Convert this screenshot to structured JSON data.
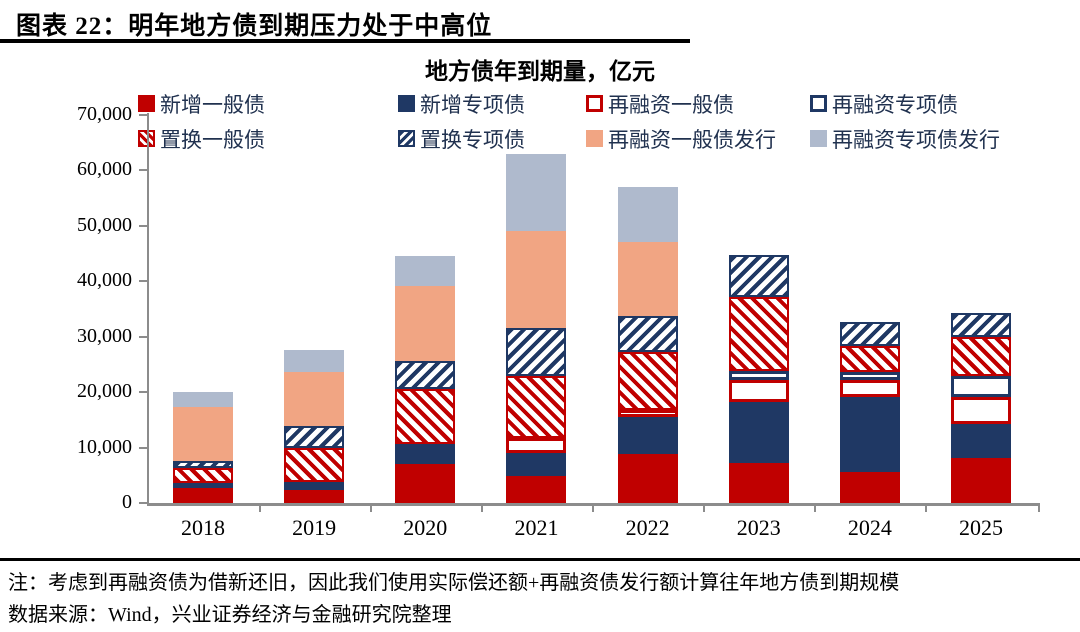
{
  "header": {
    "title": "图表 22：明年地方债到期压力处于中高位"
  },
  "chart": {
    "title": "地方债年到期量，亿元"
  },
  "chart_data": {
    "type": "bar",
    "stacked": true,
    "title": "地方债年到期量，亿元",
    "unit": "亿元",
    "ylim": [
      0,
      70000
    ],
    "ytick_step": 10000,
    "yticks": [
      "70,000",
      "60,000",
      "50,000",
      "40,000",
      "30,000",
      "20,000",
      "10,000",
      "0"
    ],
    "grid": false,
    "legend_position": "top",
    "categories": [
      "2018",
      "2019",
      "2020",
      "2021",
      "2022",
      "2023",
      "2024",
      "2025"
    ],
    "series": [
      {
        "name": "新增一般债",
        "style": "solid-red",
        "color": "#C00000",
        "values": [
          2700,
          2400,
          7000,
          4900,
          8800,
          7300,
          5500,
          8100
        ]
      },
      {
        "name": "新增专项债",
        "style": "solid-navy",
        "color": "#1F3864",
        "values": [
          900,
          1400,
          3700,
          4200,
          6700,
          10900,
          13600,
          6200
        ]
      },
      {
        "name": "再融资一般债",
        "style": "hollow-red",
        "color": "#C00000",
        "values": [
          0,
          0,
          0,
          2700,
          1200,
          3900,
          3000,
          4900
        ]
      },
      {
        "name": "再融资专项债",
        "style": "hollow-navy",
        "color": "#1F3864",
        "values": [
          0,
          0,
          0,
          0,
          0,
          1800,
          1500,
          3700
        ]
      },
      {
        "name": "置换一般债",
        "style": "hatch-red",
        "color": "#C00000",
        "values": [
          2800,
          6200,
          9900,
          11100,
          10600,
          13300,
          4800,
          7000
        ]
      },
      {
        "name": "置换专项债",
        "style": "hatch-navy",
        "color": "#1F3864",
        "values": [
          1200,
          3800,
          5000,
          8600,
          6400,
          7600,
          4200,
          4400
        ]
      },
      {
        "name": "再融资一般债发行",
        "style": "solid-salmon",
        "color": "#F1A583",
        "values": [
          9700,
          9900,
          13500,
          17600,
          13300,
          0,
          0,
          0
        ]
      },
      {
        "name": "再融资专项债发行",
        "style": "solid-bluegray",
        "color": "#AFBACD",
        "values": [
          2800,
          3900,
          5500,
          13800,
          10000,
          0,
          0,
          0
        ]
      }
    ]
  },
  "footer": {
    "note": "注：考虑到再融资债为借新还旧，因此我们使用实际偿还额+再融资债发行额计算往年地方债到期规模",
    "source": "数据来源：Wind，兴业证券经济与金融研究院整理"
  },
  "colors": {
    "red": "#C00000",
    "navy": "#1F3864",
    "salmon": "#F1A583",
    "bluegray": "#AFBACD",
    "axis": "#8c8c8c",
    "rule": "#000000"
  }
}
